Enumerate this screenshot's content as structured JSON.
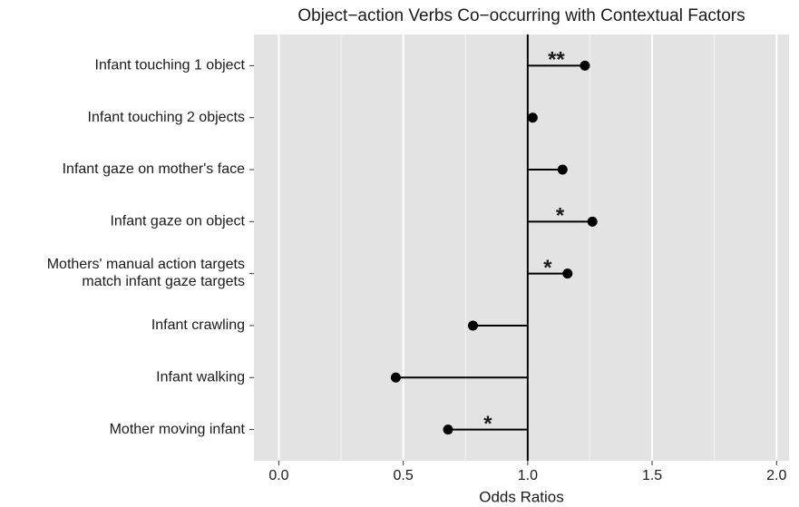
{
  "chart_data": {
    "type": "lollipop",
    "title": "Object−action Verbs Co−occurring with Contextual Factors",
    "xlabel": "Odds Ratios",
    "categories": [
      "Infant touching 1 object",
      "Infant touching 2 objects",
      "Infant gaze on mother's face",
      "Infant gaze on object",
      "Mothers' manual action targets\nmatch infant gaze targets",
      "Infant crawling",
      "Infant walking",
      "Mother moving infant"
    ],
    "values": [
      1.23,
      1.02,
      1.14,
      1.26,
      1.16,
      0.78,
      0.47,
      0.68
    ],
    "significance": [
      "**",
      null,
      null,
      "*",
      "*",
      null,
      null,
      "*"
    ],
    "reference_line": 1,
    "color": "#000000",
    "xlim": [
      -0.1,
      2.05
    ],
    "xticks": [
      {
        "value": 0,
        "label": "0.0"
      },
      {
        "value": 0.5,
        "label": "0.5"
      },
      {
        "value": 1,
        "label": "1.0"
      },
      {
        "value": 1.5,
        "label": "1.5"
      },
      {
        "value": 2,
        "label": "2.0"
      }
    ],
    "minor_xticks": [
      0.25,
      0.75,
      1.25,
      1.75
    ],
    "grid": true
  }
}
